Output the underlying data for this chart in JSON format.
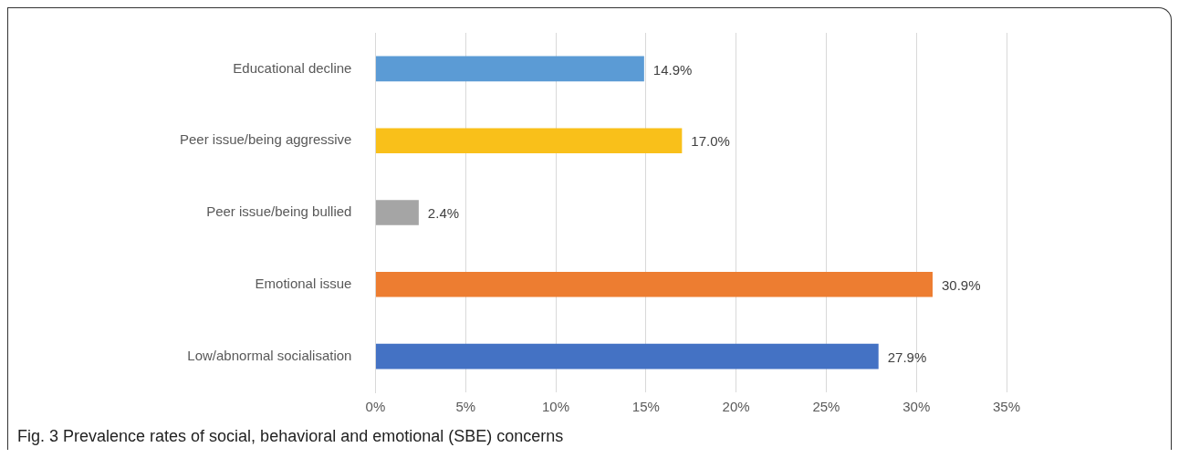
{
  "chart_data": {
    "type": "bar",
    "orientation": "horizontal",
    "categories": [
      "Educational decline",
      "Peer issue/being aggressive",
      "Peer issue/being bullied",
      "Emotional issue",
      "Low/abnormal socialisation"
    ],
    "values": [
      14.9,
      17.0,
      2.4,
      30.9,
      27.9
    ],
    "colors": [
      "#5b9bd5",
      "#f9c01a",
      "#a5a5a5",
      "#ed7d31",
      "#4472c4"
    ],
    "value_labels": [
      "14.9%",
      "17.0%",
      "2.4%",
      "30.9%",
      "27.9%"
    ],
    "xlim": [
      0,
      35
    ],
    "xticks": [
      {
        "value": 0,
        "label": "0%"
      },
      {
        "value": 5,
        "label": "5%"
      },
      {
        "value": 10,
        "label": "10%"
      },
      {
        "value": 15,
        "label": "15%"
      },
      {
        "value": 20,
        "label": "20%"
      },
      {
        "value": 25,
        "label": "25%"
      },
      {
        "value": 30,
        "label": "30%"
      },
      {
        "value": 35,
        "label": "35%"
      }
    ],
    "grid": "x",
    "annotations": [
      "Fig. 3 Prevalence rates of social, behavioral and emotional (SBE) concerns"
    ]
  }
}
